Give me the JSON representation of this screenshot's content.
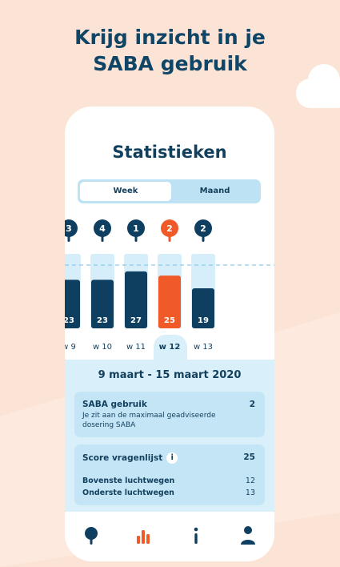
{
  "headline": {
    "line1": "Krijg inzicht in je",
    "line2": "SABA gebruik"
  },
  "screen": {
    "title": "Statistieken",
    "toggle": {
      "week": "Week",
      "month": "Maand",
      "selected": "Week"
    },
    "date_range": "9 maart - 15 maart 2020",
    "saba": {
      "title": "SABA gebruik",
      "value": "2",
      "description": "Je zit aan de maximaal geadviseerde dosering SABA"
    },
    "score": {
      "title": "Score vragenlijst",
      "info_icon": "i",
      "value": "25",
      "upper_label": "Bovenste luchtwegen",
      "upper_value": "12",
      "lower_label": "Onderste luchtwegen",
      "lower_value": "13"
    },
    "nav": {
      "items": [
        "pin-icon",
        "bar-chart-icon",
        "info-icon",
        "person-icon"
      ],
      "active": "bar-chart-icon"
    }
  },
  "chart_data": {
    "type": "bar",
    "categories": [
      "w 9",
      "w 10",
      "w 11",
      "w 12",
      "w 13"
    ],
    "series": [
      {
        "values": [
          23,
          23,
          27,
          25,
          19
        ]
      }
    ],
    "pin_counts": [
      3,
      4,
      1,
      2,
      2
    ],
    "selected": "w 12",
    "colors": {
      "bar": "#0e3f60",
      "selected": "#f05a28",
      "track": "#d6eefa",
      "pin": "#0e3f60",
      "pin_selected": "#f05a28"
    },
    "ylim": [
      0,
      30
    ],
    "reference_line": true
  }
}
